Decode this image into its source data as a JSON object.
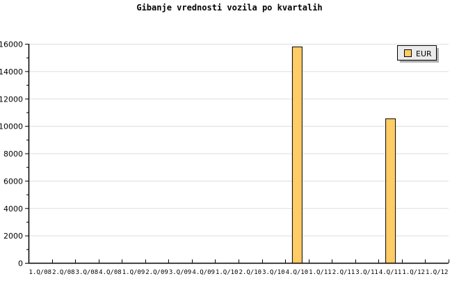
{
  "chart_data": {
    "type": "bar",
    "title": "Gibanje vrednosti vozila po kvartalih",
    "categories": [
      "1.Q/08",
      "2.Q/08",
      "3.Q/08",
      "4.Q/08",
      "1.Q/09",
      "2.Q/09",
      "3.Q/09",
      "4.Q/09",
      "1.Q/10",
      "2.Q/10",
      "3.Q/10",
      "4.Q/10",
      "1.Q/11",
      "2.Q/11",
      "3.Q/11",
      "4.Q/11",
      "1.Q/12",
      "1.Q/12"
    ],
    "series": [
      {
        "name": "EUR",
        "values": [
          0,
          0,
          0,
          0,
          0,
          0,
          0,
          0,
          0,
          0,
          0,
          15800,
          0,
          0,
          0,
          10550,
          0,
          0
        ],
        "color": "#ffcc66"
      }
    ],
    "ylim": [
      0,
      16000
    ],
    "yticks": [
      "0",
      "2000",
      "4000",
      "6000",
      "8000",
      "10000",
      "12000",
      "14000",
      "16000"
    ],
    "grid": true,
    "legend": "top-right",
    "xlabel": "",
    "ylabel": ""
  }
}
